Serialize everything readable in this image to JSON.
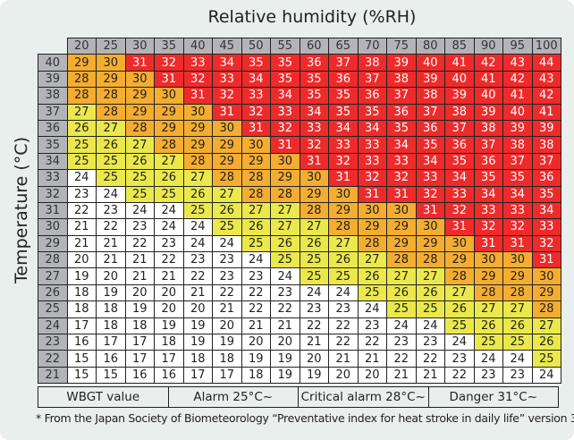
{
  "chart_data": {
    "type": "table",
    "title": "Relative humidity (%RH)",
    "xlabel": "Relative humidity (%RH)",
    "ylabel": "Temperature (°C)",
    "columns": [
      20,
      25,
      30,
      35,
      40,
      45,
      50,
      55,
      60,
      65,
      70,
      75,
      80,
      85,
      90,
      95,
      100
    ],
    "rows": [
      {
        "temp": 40,
        "values": [
          29,
          30,
          31,
          32,
          33,
          34,
          35,
          35,
          36,
          37,
          38,
          39,
          40,
          41,
          42,
          43,
          44
        ]
      },
      {
        "temp": 39,
        "values": [
          28,
          29,
          30,
          31,
          32,
          33,
          34,
          35,
          35,
          36,
          37,
          38,
          39,
          40,
          41,
          42,
          43
        ]
      },
      {
        "temp": 38,
        "values": [
          28,
          28,
          29,
          30,
          31,
          32,
          33,
          34,
          35,
          35,
          36,
          37,
          38,
          39,
          40,
          41,
          42
        ]
      },
      {
        "temp": 37,
        "values": [
          27,
          28,
          29,
          29,
          30,
          31,
          32,
          33,
          34,
          35,
          35,
          36,
          37,
          38,
          39,
          40,
          41
        ]
      },
      {
        "temp": 36,
        "values": [
          26,
          27,
          28,
          29,
          29,
          30,
          31,
          32,
          33,
          34,
          34,
          35,
          36,
          37,
          38,
          39,
          39
        ]
      },
      {
        "temp": 35,
        "values": [
          25,
          26,
          27,
          28,
          29,
          29,
          30,
          31,
          32,
          33,
          33,
          34,
          35,
          36,
          37,
          38,
          38
        ]
      },
      {
        "temp": 34,
        "values": [
          25,
          25,
          26,
          27,
          28,
          29,
          29,
          30,
          31,
          32,
          33,
          33,
          34,
          35,
          36,
          37,
          37
        ]
      },
      {
        "temp": 33,
        "values": [
          24,
          25,
          25,
          26,
          27,
          28,
          28,
          29,
          30,
          31,
          32,
          32,
          33,
          34,
          35,
          35,
          36
        ]
      },
      {
        "temp": 32,
        "values": [
          23,
          24,
          25,
          25,
          26,
          27,
          28,
          28,
          29,
          30,
          31,
          31,
          32,
          33,
          34,
          34,
          35
        ]
      },
      {
        "temp": 31,
        "values": [
          22,
          23,
          24,
          24,
          25,
          26,
          27,
          27,
          28,
          29,
          30,
          30,
          31,
          32,
          33,
          33,
          34
        ]
      },
      {
        "temp": 30,
        "values": [
          21,
          22,
          23,
          24,
          24,
          25,
          26,
          27,
          27,
          28,
          29,
          29,
          30,
          31,
          32,
          32,
          33
        ]
      },
      {
        "temp": 29,
        "values": [
          21,
          21,
          22,
          23,
          24,
          24,
          25,
          26,
          26,
          27,
          28,
          29,
          29,
          30,
          31,
          31,
          32
        ]
      },
      {
        "temp": 28,
        "values": [
          20,
          21,
          21,
          22,
          23,
          23,
          24,
          25,
          25,
          26,
          27,
          28,
          28,
          29,
          30,
          30,
          31
        ]
      },
      {
        "temp": 27,
        "values": [
          19,
          20,
          21,
          21,
          22,
          23,
          23,
          24,
          25,
          25,
          26,
          27,
          27,
          28,
          29,
          29,
          30
        ]
      },
      {
        "temp": 26,
        "values": [
          18,
          19,
          20,
          20,
          21,
          22,
          22,
          23,
          24,
          24,
          25,
          26,
          26,
          27,
          28,
          28,
          29
        ]
      },
      {
        "temp": 25,
        "values": [
          18,
          18,
          19,
          20,
          20,
          21,
          22,
          22,
          23,
          23,
          24,
          25,
          25,
          26,
          27,
          27,
          28
        ]
      },
      {
        "temp": 24,
        "values": [
          17,
          18,
          18,
          19,
          19,
          20,
          21,
          21,
          22,
          22,
          23,
          24,
          24,
          25,
          26,
          26,
          27
        ]
      },
      {
        "temp": 23,
        "values": [
          16,
          17,
          17,
          18,
          19,
          19,
          20,
          20,
          21,
          22,
          22,
          23,
          23,
          24,
          25,
          25,
          26
        ]
      },
      {
        "temp": 22,
        "values": [
          15,
          16,
          17,
          17,
          18,
          18,
          19,
          19,
          20,
          21,
          21,
          22,
          22,
          23,
          24,
          24,
          25
        ]
      },
      {
        "temp": 21,
        "values": [
          15,
          15,
          16,
          16,
          17,
          17,
          18,
          19,
          19,
          20,
          20,
          21,
          21,
          22,
          23,
          23,
          24
        ]
      }
    ],
    "thresholds": {
      "alarm": 25,
      "critical": 28,
      "danger": 31
    }
  },
  "legend": {
    "wbgt": "WBGT value",
    "alarm": "Alarm 25°C~",
    "critical": "Critical alarm 28°C~",
    "danger": "Danger 31°C~"
  },
  "colors": {
    "white": "#ffffff",
    "alarm": "#ebe84c",
    "critical": "#f4ad31",
    "danger": "#ee2b2b"
  },
  "footnote": "* From the Japan Society of Biometeorology “Preventative index for heat stroke in daily life” version 3"
}
